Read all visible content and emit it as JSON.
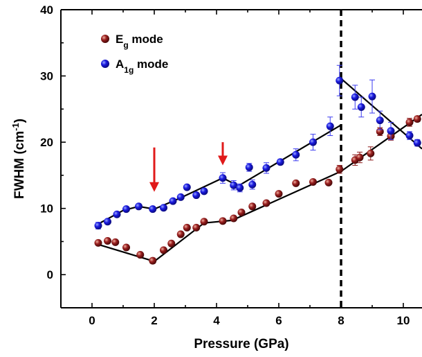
{
  "chart_data": {
    "type": "scatter",
    "title": "",
    "xlabel": "Pressure (GPa)",
    "ylabel": {
      "main": "FWHM (cm",
      "sup": "-1",
      "tail": ")"
    },
    "xlim": [
      -1,
      10.6
    ],
    "ylim": [
      -5,
      40
    ],
    "xticks": [
      0,
      2,
      4,
      6,
      8,
      10
    ],
    "yticks": [
      0,
      10,
      20,
      30,
      40
    ],
    "grid": false,
    "legend_position": "top-left",
    "series": [
      {
        "name": {
          "base": "E",
          "sub": "g",
          "tail": " mode"
        },
        "color": "#8b1a1a",
        "marker": "sphere",
        "points": [
          {
            "x": 0.2,
            "y": 4.8,
            "err": 0.3
          },
          {
            "x": 0.5,
            "y": 5.1,
            "err": 0.3
          },
          {
            "x": 0.75,
            "y": 4.9,
            "err": 0.3
          },
          {
            "x": 1.1,
            "y": 4.1,
            "err": 0.3
          },
          {
            "x": 1.55,
            "y": 3.0,
            "err": 0.3
          },
          {
            "x": 1.95,
            "y": 2.1,
            "err": 0.4
          },
          {
            "x": 2.3,
            "y": 3.7,
            "err": 0.3
          },
          {
            "x": 2.55,
            "y": 4.7,
            "err": 0.3
          },
          {
            "x": 2.85,
            "y": 6.1,
            "err": 0.3
          },
          {
            "x": 3.05,
            "y": 7.1,
            "err": 0.3
          },
          {
            "x": 3.35,
            "y": 7.1,
            "err": 0.3
          },
          {
            "x": 3.6,
            "y": 8.0,
            "err": 0.3
          },
          {
            "x": 4.2,
            "y": 8.1,
            "err": 0.3
          },
          {
            "x": 4.55,
            "y": 8.5,
            "err": 0.3
          },
          {
            "x": 4.8,
            "y": 9.4,
            "err": 0.3
          },
          {
            "x": 5.15,
            "y": 10.3,
            "err": 0.3
          },
          {
            "x": 5.6,
            "y": 10.8,
            "err": 0.3
          },
          {
            "x": 6.0,
            "y": 12.2,
            "err": 0.3
          },
          {
            "x": 6.55,
            "y": 13.8,
            "err": 0.3
          },
          {
            "x": 7.1,
            "y": 14.0,
            "err": 0.3
          },
          {
            "x": 7.6,
            "y": 13.9,
            "err": 0.3
          },
          {
            "x": 7.95,
            "y": 15.9,
            "err": 0.6
          },
          {
            "x": 8.45,
            "y": 17.3,
            "err": 0.8
          },
          {
            "x": 8.6,
            "y": 17.7,
            "err": 0.8
          },
          {
            "x": 8.95,
            "y": 18.3,
            "err": 1.0
          },
          {
            "x": 9.25,
            "y": 21.6,
            "err": 0.6
          },
          {
            "x": 9.6,
            "y": 20.9,
            "err": 0.6
          },
          {
            "x": 10.2,
            "y": 23.0,
            "err": 0.6
          },
          {
            "x": 10.45,
            "y": 23.5,
            "err": 0.4
          }
        ]
      },
      {
        "name": {
          "base": "A",
          "sub": "1g",
          "tail": " mode"
        },
        "color": "#1a1ae0",
        "marker": "sphere",
        "points": [
          {
            "x": 0.2,
            "y": 7.4,
            "err": 0.5
          },
          {
            "x": 0.5,
            "y": 8.0,
            "err": 0.3
          },
          {
            "x": 0.8,
            "y": 9.1,
            "err": 0.3
          },
          {
            "x": 1.1,
            "y": 9.9,
            "err": 0.3
          },
          {
            "x": 1.5,
            "y": 10.3,
            "err": 0.3
          },
          {
            "x": 1.95,
            "y": 9.9,
            "err": 0.3
          },
          {
            "x": 2.3,
            "y": 10.1,
            "err": 0.3
          },
          {
            "x": 2.6,
            "y": 11.1,
            "err": 0.3
          },
          {
            "x": 2.85,
            "y": 11.7,
            "err": 0.3
          },
          {
            "x": 3.05,
            "y": 13.2,
            "err": 0.3
          },
          {
            "x": 3.35,
            "y": 12.0,
            "err": 0.3
          },
          {
            "x": 3.6,
            "y": 12.6,
            "err": 0.3
          },
          {
            "x": 4.2,
            "y": 14.6,
            "err": 0.8
          },
          {
            "x": 4.55,
            "y": 13.5,
            "err": 0.7
          },
          {
            "x": 4.75,
            "y": 13.1,
            "err": 0.6
          },
          {
            "x": 5.05,
            "y": 16.2,
            "err": 0.6
          },
          {
            "x": 5.15,
            "y": 13.6,
            "err": 0.7
          },
          {
            "x": 5.6,
            "y": 16.1,
            "err": 0.8
          },
          {
            "x": 6.05,
            "y": 17.0,
            "err": 0.4
          },
          {
            "x": 6.55,
            "y": 18.1,
            "err": 0.9
          },
          {
            "x": 7.1,
            "y": 20.0,
            "err": 1.2
          },
          {
            "x": 7.65,
            "y": 22.4,
            "err": 1.4
          },
          {
            "x": 7.95,
            "y": 29.3,
            "err": 2.3
          },
          {
            "x": 8.45,
            "y": 26.8,
            "err": 1.8
          },
          {
            "x": 8.65,
            "y": 25.3,
            "err": 1.5
          },
          {
            "x": 9.0,
            "y": 26.9,
            "err": 2.5
          },
          {
            "x": 9.25,
            "y": 23.3,
            "err": 1.4
          },
          {
            "x": 9.6,
            "y": 21.7,
            "err": 1.3
          },
          {
            "x": 10.2,
            "y": 21.0,
            "err": 0.6
          },
          {
            "x": 10.45,
            "y": 19.9,
            "err": 0.5
          }
        ]
      }
    ],
    "fit_lines": [
      {
        "points": [
          [
            0.1,
            4.7
          ],
          [
            2.0,
            2.0
          ],
          [
            3.6,
            7.8
          ]
        ]
      },
      {
        "points": [
          [
            3.6,
            7.8
          ],
          [
            4.5,
            8.2
          ],
          [
            8.0,
            15.6
          ],
          [
            10.6,
            24.2
          ]
        ]
      },
      {
        "points": [
          [
            0.1,
            7.4
          ],
          [
            1.0,
            9.7
          ],
          [
            1.5,
            10.3
          ],
          [
            2.0,
            9.9
          ],
          [
            2.8,
            11.5
          ],
          [
            4.2,
            14.6
          ]
        ]
      },
      {
        "points": [
          [
            4.2,
            14.6
          ],
          [
            4.7,
            13.4
          ],
          [
            8.0,
            22.6
          ]
        ]
      },
      {
        "points": [
          [
            8.0,
            29.6
          ],
          [
            10.6,
            19.0
          ]
        ]
      }
    ],
    "vertical_line": {
      "x": 8,
      "style": "dashed"
    },
    "annotations": [
      {
        "type": "arrow",
        "color": "#e01a1a",
        "x": 2.0,
        "y_from": 19.2,
        "y_to": 12.5
      },
      {
        "type": "arrow",
        "color": "#e01a1a",
        "x": 4.2,
        "y_from": 20.0,
        "y_to": 16.5
      }
    ]
  }
}
